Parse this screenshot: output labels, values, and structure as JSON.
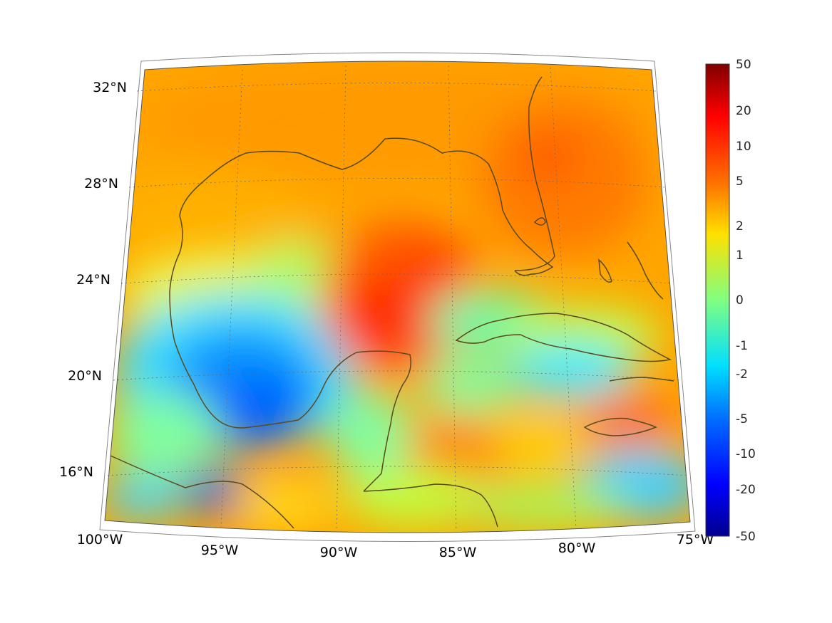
{
  "map": {
    "projection": "lambert-conformal-conic",
    "lon_range": [
      -100,
      -75
    ],
    "lat_range": [
      14,
      33
    ],
    "grid": true,
    "lat_labels": [
      "32°N",
      "28°N",
      "24°N",
      "20°N",
      "16°N"
    ],
    "lon_labels": [
      "100°W",
      "95°W",
      "90°W",
      "85°W",
      "80°W",
      "75°W"
    ],
    "coastline_color": "#5a4a1e"
  },
  "colorbar": {
    "colormap": "jet",
    "scale": "symmetric-log",
    "range": [
      -50,
      50
    ],
    "tick_labels": [
      "50",
      "20",
      "10",
      "5",
      "2",
      "1",
      "0",
      "-1",
      "-2",
      "-5",
      "-10",
      "-20",
      "-50"
    ]
  }
}
